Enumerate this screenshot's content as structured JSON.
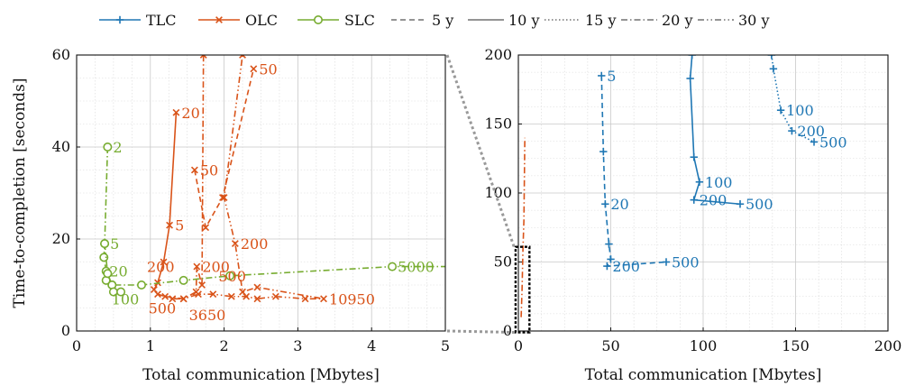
{
  "chart_data": [
    {
      "type": "line",
      "name": "left-panel",
      "xlabel": "Total communication [Mbytes]",
      "ylabel": "Time-to-completion [seconds]",
      "xlim": [
        0,
        5
      ],
      "ylim": [
        0,
        60
      ],
      "x_ticks": [
        "0",
        "1",
        "2",
        "3",
        "4",
        "5"
      ],
      "y_ticks": [
        "0",
        "20",
        "40",
        "60"
      ],
      "grid": true,
      "series": [
        {
          "name": "OLC 5 y",
          "scheme": "OLC",
          "horizon": "5 y",
          "points": [
            [
              1.6,
              35
            ],
            [
              1.75,
              22.5
            ],
            [
              1.98,
              29
            ],
            [
              2.4,
              57
            ]
          ]
        },
        {
          "name": "OLC 10 y",
          "scheme": "OLC",
          "horizon": "10 y",
          "points": [
            [
              1.05,
              9
            ],
            [
              1.1,
              10.5
            ],
            [
              1.18,
              15
            ],
            [
              1.26,
              23
            ],
            [
              1.35,
              47.5
            ]
          ]
        },
        {
          "name": "OLC 20 y",
          "scheme": "OLC",
          "horizon": "20 y",
          "points": [
            [
              1.2,
              7.5
            ],
            [
              1.45,
              7
            ],
            [
              1.62,
              8.5
            ],
            [
              1.63,
              14
            ],
            [
              1.7,
              10
            ],
            [
              1.72,
              60
            ]
          ]
        },
        {
          "name": "OLC 30 y",
          "scheme": "OLC",
          "horizon": "30 y",
          "points": [
            [
              1.1,
              8
            ],
            [
              1.3,
              7
            ],
            [
              1.45,
              7
            ],
            [
              1.65,
              8
            ],
            [
              1.85,
              8
            ],
            [
              2.1,
              7.5
            ],
            [
              2.3,
              7.5
            ],
            [
              2.45,
              7
            ],
            [
              2.7,
              7.5
            ],
            [
              3.1,
              7
            ],
            [
              3.35,
              7
            ],
            [
              2.45,
              9.5
            ],
            [
              2.25,
              8.5
            ],
            [
              2.15,
              19
            ],
            [
              2.0,
              29
            ],
            [
              2.25,
              60
            ]
          ]
        },
        {
          "name": "SLC 20 y",
          "scheme": "SLC",
          "horizon": "20 y",
          "points": [
            [
              0.42,
              40
            ],
            [
              0.38,
              19
            ],
            [
              0.37,
              16
            ],
            [
              0.4,
              13
            ],
            [
              0.4,
              11
            ],
            [
              0.48,
              10
            ],
            [
              0.88,
              10
            ],
            [
              1.45,
              11
            ],
            [
              2.08,
              12
            ],
            [
              4.28,
              14
            ],
            [
              5.0,
              14
            ]
          ]
        },
        {
          "name": "SLC 30 y",
          "scheme": "SLC",
          "horizon": "30 y",
          "points": [
            [
              0.38,
              19
            ],
            [
              0.42,
              12.5
            ],
            [
              0.48,
              10
            ],
            [
              0.5,
              8.5
            ],
            [
              0.6,
              8.5
            ]
          ]
        }
      ],
      "annotations": [
        {
          "text": "20",
          "x": 1.35,
          "y": 47.5,
          "scheme": "OLC"
        },
        {
          "text": "50",
          "x": 2.4,
          "y": 57,
          "scheme": "OLC"
        },
        {
          "text": "50",
          "x": 1.6,
          "y": 35,
          "scheme": "OLC"
        },
        {
          "text": "5",
          "x": 1.26,
          "y": 23,
          "scheme": "OLC"
        },
        {
          "text": "200",
          "x": 1.63,
          "y": 14,
          "scheme": "OLC"
        },
        {
          "text": "200",
          "x": 2.15,
          "y": 19,
          "scheme": "OLC"
        },
        {
          "text": "500",
          "x": 1.85,
          "y": 12,
          "scheme": "OLC"
        },
        {
          "text": "500",
          "x": 0.9,
          "y": 5,
          "scheme": "OLC"
        },
        {
          "text": "3650",
          "x": 1.45,
          "y": 3.5,
          "scheme": "OLC"
        },
        {
          "text": "10950",
          "x": 3.35,
          "y": 7,
          "scheme": "OLC"
        },
        {
          "text": "200",
          "x": 0.88,
          "y": 14,
          "scheme": "OLC"
        },
        {
          "text": "2",
          "x": 0.42,
          "y": 40,
          "scheme": "SLC"
        },
        {
          "text": "5",
          "x": 0.38,
          "y": 19,
          "scheme": "SLC"
        },
        {
          "text": "20",
          "x": 0.37,
          "y": 13,
          "scheme": "SLC"
        },
        {
          "text": "100",
          "x": 0.4,
          "y": 7,
          "scheme": "SLC"
        },
        {
          "text": "5000",
          "x": 4.28,
          "y": 14,
          "scheme": "SLC"
        }
      ]
    },
    {
      "type": "line",
      "name": "right-panel",
      "xlabel": "Total communication [Mbytes]",
      "xlim": [
        0,
        200
      ],
      "ylim": [
        0,
        200
      ],
      "x_ticks": [
        "0",
        "50",
        "100",
        "150",
        "200"
      ],
      "y_ticks": [
        "0",
        "50",
        "100",
        "150",
        "200"
      ],
      "grid": true,
      "series": [
        {
          "name": "TLC 5 y",
          "scheme": "TLC",
          "horizon": "5 y",
          "points": [
            [
              45,
              185
            ],
            [
              46,
              130
            ],
            [
              47,
              92
            ],
            [
              49,
              63
            ],
            [
              50,
              52
            ],
            [
              48,
              47
            ],
            [
              80,
              50
            ]
          ]
        },
        {
          "name": "TLC 10 y",
          "scheme": "TLC",
          "horizon": "10 y",
          "points": [
            [
              94,
              200
            ],
            [
              93,
              183
            ],
            [
              95,
              126
            ],
            [
              98,
              108
            ],
            [
              95,
              95
            ],
            [
              120,
              92
            ]
          ]
        },
        {
          "name": "TLC 15 y",
          "scheme": "TLC",
          "horizon": "15 y",
          "points": [
            [
              137,
              200
            ],
            [
              138,
              190
            ],
            [
              142,
              160
            ],
            [
              148,
              145
            ],
            [
              160,
              137
            ]
          ]
        },
        {
          "name": "OLC (zoomed)",
          "scheme": "OLC",
          "horizon": "20 y",
          "points": [
            [
              1.5,
              10
            ],
            [
              2,
              30
            ],
            [
              2.5,
              60
            ],
            [
              3,
              80
            ],
            [
              3.5,
              140
            ]
          ]
        }
      ],
      "annotations": [
        {
          "text": "5",
          "x": 45,
          "y": 185,
          "scheme": "TLC"
        },
        {
          "text": "20",
          "x": 47,
          "y": 92,
          "scheme": "TLC"
        },
        {
          "text": "200",
          "x": 48,
          "y": 47,
          "scheme": "TLC"
        },
        {
          "text": "500",
          "x": 80,
          "y": 50,
          "scheme": "TLC"
        },
        {
          "text": "100",
          "x": 98,
          "y": 108,
          "scheme": "TLC"
        },
        {
          "text": "200",
          "x": 95,
          "y": 95,
          "scheme": "TLC"
        },
        {
          "text": "500",
          "x": 120,
          "y": 92,
          "scheme": "TLC"
        },
        {
          "text": "100",
          "x": 142,
          "y": 160,
          "scheme": "TLC"
        },
        {
          "text": "200",
          "x": 148,
          "y": 145,
          "scheme": "TLC"
        },
        {
          "text": "500",
          "x": 160,
          "y": 137,
          "scheme": "TLC"
        }
      ]
    }
  ],
  "legend": {
    "placement": "top",
    "schemes": [
      {
        "label": "TLC",
        "marker": "plus",
        "color": "#1f77b4"
      },
      {
        "label": "OLC",
        "marker": "cross",
        "color": "#d95319"
      },
      {
        "label": "SLC",
        "marker": "circle",
        "color": "#77ac30"
      }
    ],
    "horizons": [
      {
        "label": "5 y",
        "dash": "dashed"
      },
      {
        "label": "10 y",
        "dash": "solid"
      },
      {
        "label": "15 y",
        "dash": "dotted"
      },
      {
        "label": "20 y",
        "dash": "dashdot"
      },
      {
        "label": "30 y",
        "dash": "dashdotdot"
      }
    ]
  },
  "colors": {
    "TLC": "#1f77b4",
    "OLC": "#d95319",
    "SLC": "#77ac30"
  }
}
